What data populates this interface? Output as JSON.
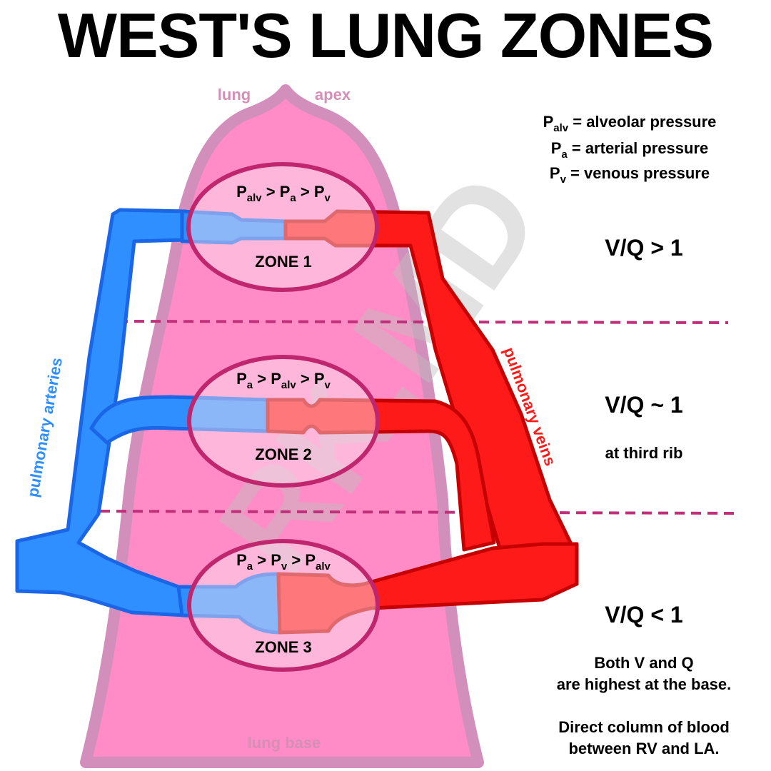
{
  "title": "WEST'S LUNG ZONES",
  "labels": {
    "lung_apex_left": "lung",
    "lung_apex_right": "apex",
    "lung_base": "lung base",
    "pulmonary_arteries": "pulmonary arteries",
    "pulmonary_veins": "pulmonary veins"
  },
  "legend": [
    {
      "symbol": "P",
      "subscript": "alv",
      "text": " = alveolar pressure"
    },
    {
      "symbol": "P",
      "subscript": "a",
      "text": " = arterial pressure"
    },
    {
      "symbol": "P",
      "subscript": "v",
      "text": " = venous pressure"
    }
  ],
  "zones": [
    {
      "name": "ZONE 1",
      "relation": [
        {
          "s": "P",
          "sub": "alv"
        },
        {
          "op": " > "
        },
        {
          "s": "P",
          "sub": "a"
        },
        {
          "op": " > "
        },
        {
          "s": "P",
          "sub": "v"
        }
      ],
      "vq": "V/Q > 1"
    },
    {
      "name": "ZONE 2",
      "relation": [
        {
          "s": "P",
          "sub": "a"
        },
        {
          "op": " > "
        },
        {
          "s": "P",
          "sub": "alv"
        },
        {
          "op": " > "
        },
        {
          "s": "P",
          "sub": "v"
        }
      ],
      "vq": "V/Q ~ 1",
      "note": "at third rib"
    },
    {
      "name": "ZONE 3",
      "relation": [
        {
          "s": "P",
          "sub": "a"
        },
        {
          "op": " > "
        },
        {
          "s": "P",
          "sub": "v"
        },
        {
          "op": " > "
        },
        {
          "s": "P",
          "sub": "alv"
        }
      ],
      "vq": "V/Q < 1",
      "notes": [
        "Both V and Q",
        "are highest at the base.",
        "Direct column of blood",
        "between RV and LA."
      ]
    }
  ],
  "watermark": "RK.MD",
  "colors": {
    "artery": "#2f8fff",
    "vein": "#ff1a1a",
    "lung_fill": "#ff8cc6",
    "lung_outline": "#d28fbb",
    "zone_outline": "#c0266e",
    "zone_fill": "#fce8f2",
    "dashed_line": "#c0307a",
    "label_pink": "#d58fb6"
  }
}
